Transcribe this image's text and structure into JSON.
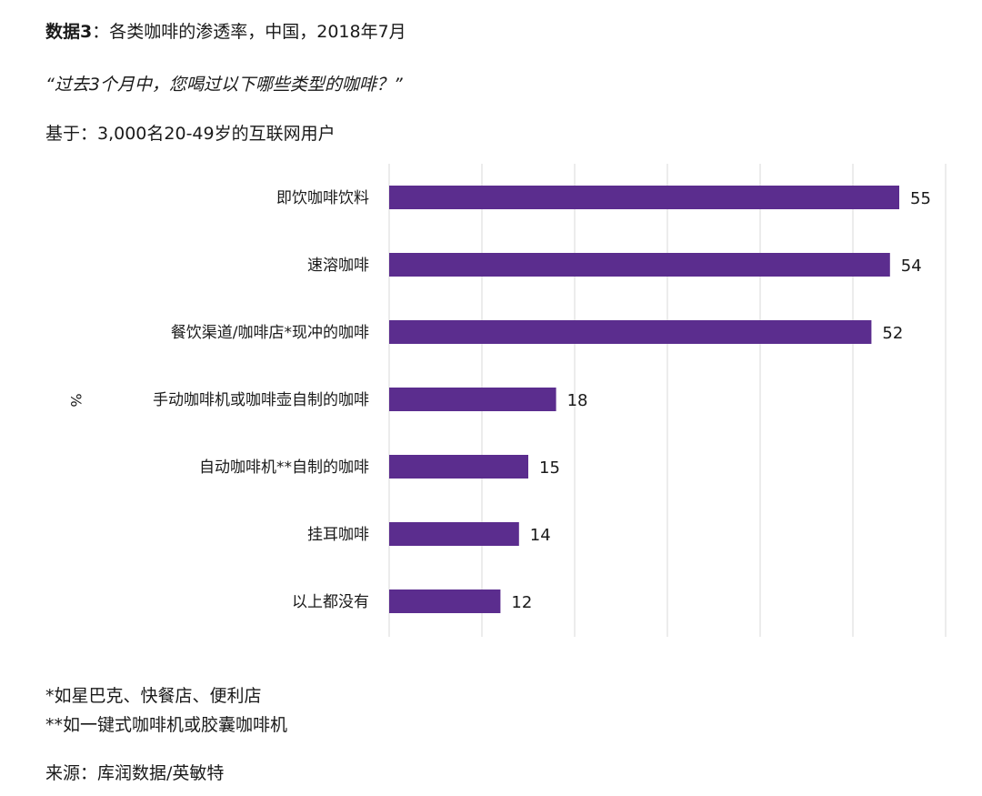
{
  "header": {
    "title_lead": "数据3",
    "title_rest": "：各类咖啡的渗透率，中国，2018年7月",
    "question": "“过去3个月中，您喝过以下哪些类型的咖啡？”",
    "base": "基于：3,000名20-49岁的互联网用户"
  },
  "footer": {
    "note1": "*如星巴克、快餐店、便利店",
    "note2": "**如一键式咖啡机或胶囊咖啡机",
    "source": "来源：库润数据/英敏特"
  },
  "colors": {
    "bar": "#5b2d8e",
    "grid": "#d9d9d9"
  },
  "chart_data": {
    "type": "bar",
    "orientation": "horizontal",
    "ylabel": "%",
    "categories": [
      "即饮咖啡饮料",
      "速溶咖啡",
      "餐饮渠道/咖啡店*现冲的咖啡",
      "手动咖啡机或咖啡壶自制的咖啡",
      "自动咖啡机**自制的咖啡",
      "挂耳咖啡",
      "以上都没有"
    ],
    "values": [
      55,
      54,
      52,
      18,
      15,
      14,
      12
    ],
    "xlim": [
      0,
      60
    ],
    "grid": true,
    "legend": "none"
  }
}
